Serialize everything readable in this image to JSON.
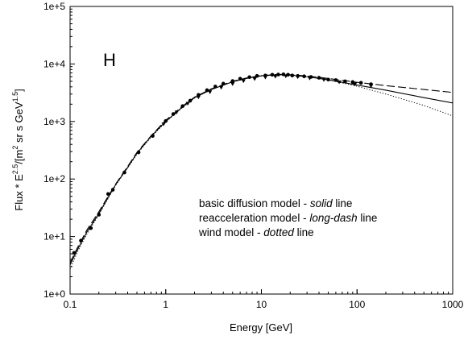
{
  "chart_data": {
    "type": "line",
    "title": "",
    "panel_label": "H",
    "xlabel": "Energy [GeV]",
    "ylabel": {
      "prefix": "Flux * E",
      "exp1": "2.5",
      "mid": "/[m",
      "exp2": "2",
      "suffix": " sr s GeV",
      "exp3": "1.5",
      "end": "]"
    },
    "xscale": "log",
    "yscale": "log",
    "xlim": [
      0.1,
      1000
    ],
    "ylim": [
      1,
      100000
    ],
    "xticks": [
      {
        "value": 0.1,
        "label": "0.1"
      },
      {
        "value": 1,
        "label": "1"
      },
      {
        "value": 10,
        "label": "10"
      },
      {
        "value": 100,
        "label": "100"
      },
      {
        "value": 1000,
        "label": "1000"
      }
    ],
    "yticks": [
      {
        "value": 1,
        "label": "1e+0"
      },
      {
        "value": 10,
        "label": "1e+1"
      },
      {
        "value": 100,
        "label": "1e+2"
      },
      {
        "value": 1000,
        "label": "1e+3"
      },
      {
        "value": 10000,
        "label": "1e+4"
      },
      {
        "value": 100000,
        "label": "1e+5"
      }
    ],
    "grid": false,
    "legend": {
      "placement": "center-right",
      "lines": [
        {
          "pre": "basic diffusion model - ",
          "em": "solid",
          "post": " line"
        },
        {
          "pre": "reacceleration model - ",
          "em": "long-dash",
          "post": " line"
        },
        {
          "pre": "wind model - ",
          "em": "dotted",
          "post": " line"
        }
      ]
    },
    "series": [
      {
        "style": "solid",
        "points": [
          [
            0.1,
            3.2
          ],
          [
            0.12,
            6
          ],
          [
            0.15,
            12
          ],
          [
            0.2,
            25
          ],
          [
            0.25,
            48
          ],
          [
            0.3,
            80
          ],
          [
            0.4,
            160
          ],
          [
            0.5,
            280
          ],
          [
            0.7,
            550
          ],
          [
            1,
            1000
          ],
          [
            1.5,
            1800
          ],
          [
            2,
            2600
          ],
          [
            3,
            3600
          ],
          [
            5,
            4900
          ],
          [
            7,
            5600
          ],
          [
            10,
            6200
          ],
          [
            15,
            6500
          ],
          [
            20,
            6400
          ],
          [
            30,
            6000
          ],
          [
            50,
            5300
          ],
          [
            100,
            4300
          ],
          [
            200,
            3500
          ],
          [
            500,
            2600
          ],
          [
            1000,
            2100
          ]
        ]
      },
      {
        "style": "long-dash",
        "points": [
          [
            0.1,
            3.5
          ],
          [
            0.12,
            6.5
          ],
          [
            0.15,
            13
          ],
          [
            0.2,
            27
          ],
          [
            0.25,
            50
          ],
          [
            0.3,
            82
          ],
          [
            0.4,
            165
          ],
          [
            0.5,
            290
          ],
          [
            0.7,
            560
          ],
          [
            1,
            1050
          ],
          [
            1.5,
            1850
          ],
          [
            2,
            2650
          ],
          [
            3,
            3700
          ],
          [
            5,
            5000
          ],
          [
            7,
            5700
          ],
          [
            10,
            6300
          ],
          [
            15,
            6550
          ],
          [
            20,
            6500
          ],
          [
            30,
            6200
          ],
          [
            50,
            5600
          ],
          [
            100,
            4800
          ],
          [
            200,
            4200
          ],
          [
            500,
            3600
          ],
          [
            1000,
            3200
          ]
        ]
      },
      {
        "style": "dotted",
        "points": [
          [
            0.1,
            2.7
          ],
          [
            0.12,
            5.5
          ],
          [
            0.15,
            11
          ],
          [
            0.2,
            24
          ],
          [
            0.25,
            46
          ],
          [
            0.3,
            78
          ],
          [
            0.4,
            155
          ],
          [
            0.5,
            270
          ],
          [
            0.7,
            530
          ],
          [
            1,
            980
          ],
          [
            1.5,
            1750
          ],
          [
            2,
            2550
          ],
          [
            3,
            3600
          ],
          [
            5,
            4900
          ],
          [
            7,
            5700
          ],
          [
            10,
            6300
          ],
          [
            15,
            6600
          ],
          [
            20,
            6500
          ],
          [
            30,
            6100
          ],
          [
            50,
            5300
          ],
          [
            100,
            4100
          ],
          [
            200,
            3000
          ],
          [
            500,
            1900
          ],
          [
            1000,
            1250
          ]
        ]
      }
    ],
    "measurements": [
      {
        "marker": "circle",
        "points": [
          [
            0.11,
            5.2
          ],
          [
            0.13,
            8.5
          ],
          [
            0.165,
            14
          ],
          [
            0.2,
            24
          ],
          [
            0.25,
            55
          ],
          [
            0.28,
            65
          ],
          [
            0.37,
            130
          ],
          [
            0.52,
            290
          ],
          [
            0.73,
            560
          ],
          [
            1.0,
            1020
          ],
          [
            1.2,
            1350
          ],
          [
            1.5,
            1850
          ],
          [
            1.8,
            2300
          ],
          [
            2.2,
            2900
          ],
          [
            2.7,
            3500
          ],
          [
            3.3,
            4050
          ],
          [
            4.0,
            4550
          ],
          [
            5.0,
            5050
          ],
          [
            6.0,
            5550
          ],
          [
            7.5,
            5900
          ],
          [
            9.0,
            6200
          ],
          [
            11,
            6300
          ],
          [
            13,
            6500
          ],
          [
            15,
            6550
          ],
          [
            17,
            6600
          ],
          [
            19,
            6500
          ],
          [
            21,
            6300
          ],
          [
            24,
            6200
          ],
          [
            28,
            6100
          ],
          [
            33,
            5950
          ],
          [
            40,
            5750
          ],
          [
            50,
            5350
          ],
          [
            60,
            5250
          ],
          [
            75,
            5000
          ],
          [
            90,
            4850
          ],
          [
            110,
            4700
          ],
          [
            140,
            4450
          ]
        ]
      },
      {
        "marker": "triangle",
        "points": [
          [
            0.95,
            900
          ],
          [
            1.3,
            1450
          ],
          [
            1.7,
            2050
          ],
          [
            2.2,
            2650
          ],
          [
            2.9,
            3250
          ],
          [
            3.8,
            3900
          ],
          [
            5.0,
            4500
          ],
          [
            6.5,
            5050
          ],
          [
            8.5,
            5500
          ],
          [
            11,
            5850
          ],
          [
            14,
            6050
          ],
          [
            18,
            6150
          ],
          [
            24,
            5950
          ],
          [
            32,
            5650
          ],
          [
            45,
            5300
          ],
          [
            65,
            4850
          ],
          [
            95,
            4450
          ],
          [
            140,
            4150
          ]
        ]
      }
    ]
  }
}
